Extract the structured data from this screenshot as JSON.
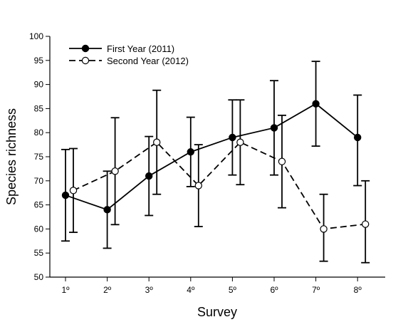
{
  "chart_data": {
    "type": "line",
    "xlabel": "Survey",
    "ylabel": "Species richness",
    "categories": [
      "1º",
      "2º",
      "3º",
      "4º",
      "5º",
      "6º",
      "7º",
      "8º"
    ],
    "ylim": [
      50,
      100
    ],
    "yticks": [
      50,
      55,
      60,
      65,
      70,
      75,
      80,
      85,
      90,
      95,
      100
    ],
    "grid": false,
    "legend_position": "top-left",
    "series": [
      {
        "name": "First Year (2011)",
        "marker": "filled-circle",
        "line_style": "solid",
        "values": [
          67,
          64,
          71,
          76,
          79,
          81,
          86,
          79
        ],
        "error_upper": [
          76.5,
          72,
          79.2,
          83.2,
          86.8,
          90.8,
          94.8,
          87.8
        ],
        "error_lower": [
          57.5,
          56,
          62.8,
          68.8,
          71.2,
          71.2,
          77.2,
          69
        ]
      },
      {
        "name": "Second Year (2012)",
        "marker": "open-circle",
        "line_style": "dashed",
        "values": [
          68,
          72,
          78,
          69,
          78,
          74,
          60,
          61
        ],
        "error_upper": [
          76.7,
          83.1,
          88.8,
          77.5,
          86.8,
          83.6,
          67.2,
          70
        ],
        "error_lower": [
          59.3,
          60.9,
          67.2,
          60.5,
          69.2,
          64.4,
          53.3,
          53
        ]
      }
    ]
  }
}
